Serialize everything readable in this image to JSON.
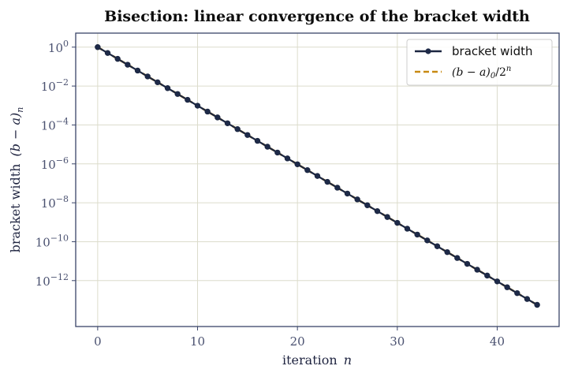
{
  "chart_data": {
    "type": "line",
    "title": "Bisection: linear convergence of the bracket width",
    "xlabel": "iteration",
    "xlabel_symbol": "n",
    "ylabel": "bracket width",
    "ylabel_symbol": "(b − a)",
    "ylabel_subscript": "n",
    "yscale": "log",
    "xlim": [
      -2.2,
      46.2
    ],
    "ylim_exp": [
      -14.36,
      0.72
    ],
    "x_ticks": [
      0,
      10,
      20,
      30,
      40
    ],
    "y_ticks": [
      {
        "base": "10",
        "exp": "0",
        "value_exp": 0
      },
      {
        "base": "10",
        "exp": "−2",
        "value_exp": -2
      },
      {
        "base": "10",
        "exp": "−4",
        "value_exp": -4
      },
      {
        "base": "10",
        "exp": "−6",
        "value_exp": -6
      },
      {
        "base": "10",
        "exp": "−8",
        "value_exp": -8
      },
      {
        "base": "10",
        "exp": "−10",
        "value_exp": -10
      },
      {
        "base": "10",
        "exp": "−12",
        "value_exp": -12
      }
    ],
    "grid": true,
    "legend_position": "top-right",
    "initial_width": 1,
    "n_values": [
      0,
      1,
      2,
      3,
      4,
      5,
      6,
      7,
      8,
      9,
      10,
      11,
      12,
      13,
      14,
      15,
      16,
      17,
      18,
      19,
      20,
      21,
      22,
      23,
      24,
      25,
      26,
      27,
      28,
      29,
      30,
      31,
      32,
      33,
      34,
      35,
      36,
      37,
      38,
      39,
      40,
      41,
      42,
      43,
      44
    ],
    "series": [
      {
        "name": "bracket width",
        "color": "#1b2640",
        "style": "solid-with-markers",
        "rule": "width halves each iteration starting from 1",
        "values": [
          1,
          0.5,
          0.25,
          0.125,
          0.0625,
          0.03125,
          0.015625,
          0.0078125,
          0.00390625,
          0.001953125,
          0.0009765625,
          0.00048828125,
          0.000244140625,
          0.0001220703125,
          6.103515625e-05,
          3.0517578125e-05,
          1.52587890625e-05,
          7.62939453125e-06,
          3.814697265625e-06,
          1.9073486328125e-06,
          9.5367431640625e-07,
          4.76837158203125e-07,
          2.384185791015625e-07,
          1.1920928955078125e-07,
          5.960464477539063e-08,
          2.9802322387695312e-08,
          1.4901161193847656e-08,
          7.450580596923828e-09,
          3.725290298461914e-09,
          1.862645149230957e-09,
          9.313225746154785e-10,
          4.656612873077393e-10,
          2.3283064365386963e-10,
          1.1641532182693481e-10,
          5.820766091346741e-11,
          2.9103830456733704e-11,
          1.4551915228366852e-11,
          7.275957614183426e-12,
          3.637978807091713e-12,
          1.8189894035458565e-12,
          9.094947017729282e-13,
          4.547473508864641e-13,
          2.2737367544323206e-13,
          1.1368683772161603e-13,
          5.684341886080802e-14
        ]
      },
      {
        "name": "(b − a)₀/2ⁿ",
        "legend_main": "(b − a)",
        "legend_sub": "0",
        "legend_mid": "/2",
        "legend_sup": "n",
        "color": "#c88a12",
        "style": "dashed",
        "rule": "reference line 1 / 2^n"
      }
    ]
  },
  "colors": {
    "frame": "#3a4468",
    "grid": "#dcdccc",
    "tick_text": "#4a5170",
    "marker_fill": "#1e2a48"
  }
}
